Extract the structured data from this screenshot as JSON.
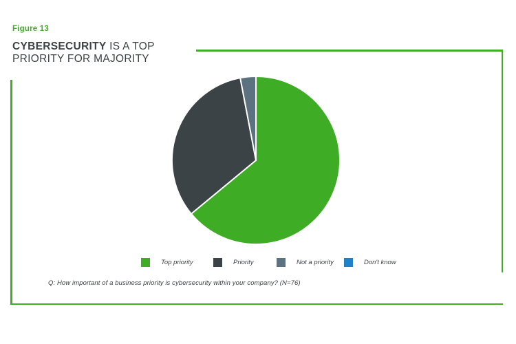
{
  "figure_label": "Figure 13",
  "title": {
    "bold": "CYBERSECURITY",
    "rest": " IS A TOP",
    "line2": "PRIORITY FOR MAJORITY"
  },
  "footnote": "Q: How important of a business priority is cybersecurity within your company? (N=76)",
  "colors": {
    "accent_green": "#3eac25",
    "charcoal": "#3b4347",
    "slate": "#5d7280",
    "blue": "#2080c8",
    "frame_green": "#42ae27",
    "text": "#3b4347"
  },
  "chart_data": {
    "type": "pie",
    "title": "Cybersecurity is a top priority for majority",
    "categories": [
      "Top priority",
      "Priority",
      "Not a priority",
      "Don't know"
    ],
    "values": [
      64,
      33,
      3,
      0
    ],
    "colors": [
      "#3eac25",
      "#3b4347",
      "#5d7280",
      "#2080c8"
    ],
    "units": "percent",
    "start_angle_deg": 0,
    "direction": "clockwise",
    "legend_position": "bottom",
    "sample_size": "N=76",
    "question": "Q: How important of a business priority is cybersecurity within your company? (N=76)"
  }
}
